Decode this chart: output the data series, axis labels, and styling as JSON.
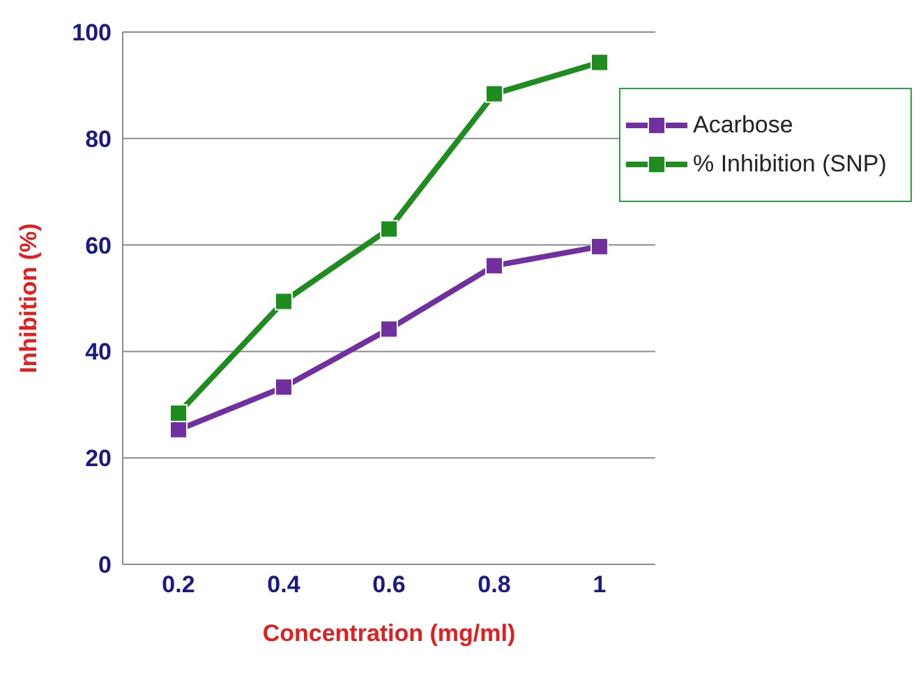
{
  "chart_data": {
    "type": "line",
    "xlabel": "Concentration (mg/ml)",
    "ylabel": "Inhibition (%)",
    "categories": [
      "0.2",
      "0.4",
      "0.6",
      "0.8",
      "1"
    ],
    "series": [
      {
        "name": "Acarbose",
        "color": "#7030a0",
        "values": [
          25.3,
          33.3,
          44.2,
          56.1,
          59.7
        ]
      },
      {
        "name": "% Inhibition (SNP)",
        "color": "#1e8c1e",
        "values": [
          28.4,
          49.4,
          63.0,
          88.4,
          94.3
        ]
      }
    ],
    "ylim": [
      0,
      100
    ],
    "yticks": [
      0,
      20,
      40,
      60,
      80,
      100
    ],
    "grid": "y",
    "legend": "right",
    "marker": "square",
    "line_style": "solid"
  }
}
